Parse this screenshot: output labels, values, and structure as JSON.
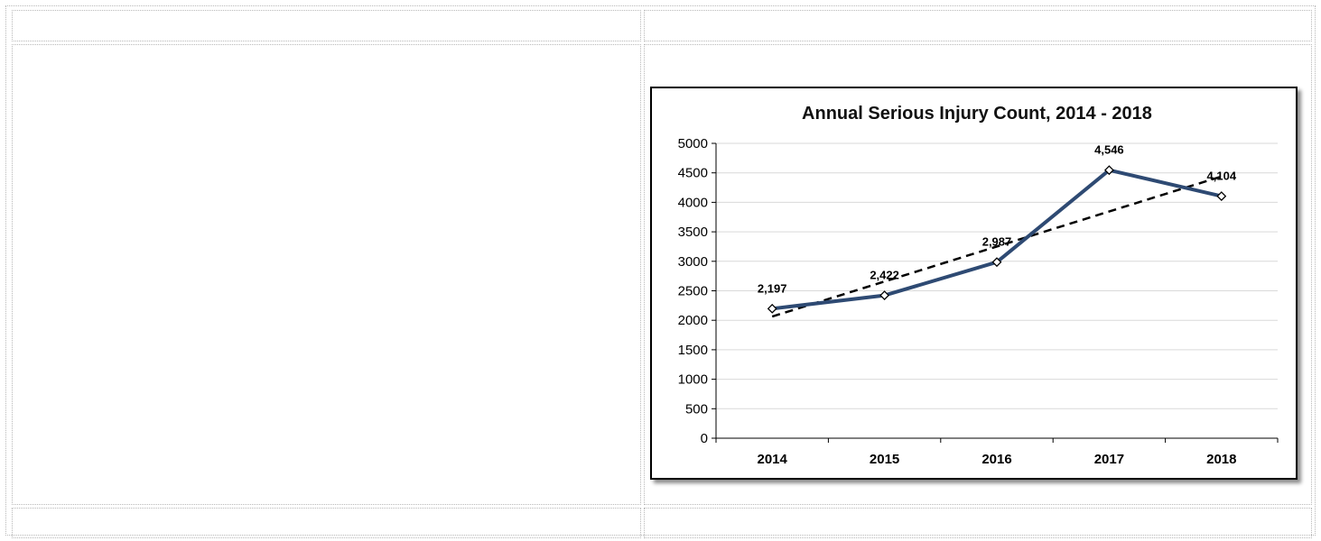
{
  "colors": {
    "series": "#2e4a73",
    "trend": "#000000",
    "grid": "#d9d9d9"
  },
  "chart_data": {
    "type": "line",
    "title": "Annual Serious Injury Count, 2014 - 2018",
    "xlabel": "",
    "ylabel": "",
    "categories": [
      "2014",
      "2015",
      "2016",
      "2017",
      "2018"
    ],
    "series": [
      {
        "values": [
          2197,
          2422,
          2987,
          4546,
          4104
        ],
        "labels": [
          "2,197",
          "2,422",
          "2,987",
          "4,546",
          "4,104"
        ]
      }
    ],
    "trendline": {
      "type": "linear",
      "style": "dashed"
    },
    "ylim": [
      0,
      5000
    ],
    "yticks": [
      "0",
      "500",
      "1000",
      "1500",
      "2000",
      "2500",
      "3000",
      "3500",
      "4000",
      "4500",
      "5000"
    ],
    "grid": true,
    "legend": "none"
  }
}
